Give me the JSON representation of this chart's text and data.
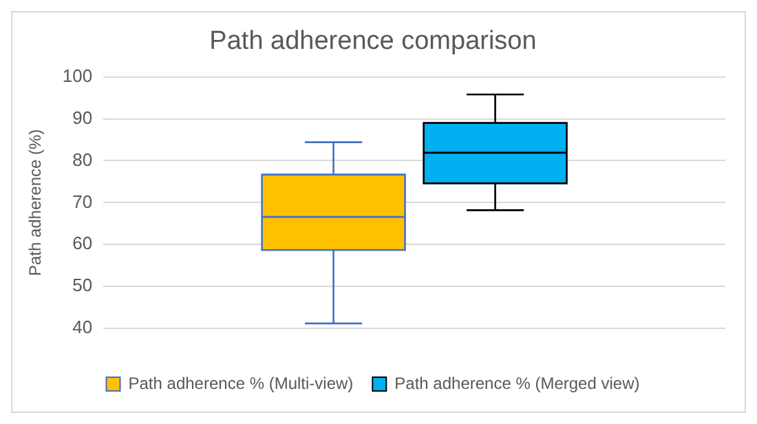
{
  "chart_data": {
    "type": "box",
    "title": "Path adherence comparison",
    "ylabel": "Path adherence (%)",
    "categories": [
      null
    ],
    "series": [
      {
        "name": "Path adherence % (Multi-view)",
        "color": "#ffc000",
        "boxes": [
          {
            "low": 41.2,
            "q1": 58.7,
            "median": 66.6,
            "q3": 76.7,
            "high": 84.4
          }
        ]
      },
      {
        "name": "Path adherence % (Merged view)",
        "color": "#00b0f0",
        "boxes": [
          {
            "low": 68.2,
            "q1": 74.6,
            "median": 81.9,
            "q3": 89.0,
            "high": 95.8
          }
        ]
      }
    ],
    "ylim": [
      40,
      100
    ],
    "yticks": [
      40,
      50,
      60,
      70,
      80,
      90,
      100
    ],
    "grid": "y",
    "legend": "bottom"
  }
}
